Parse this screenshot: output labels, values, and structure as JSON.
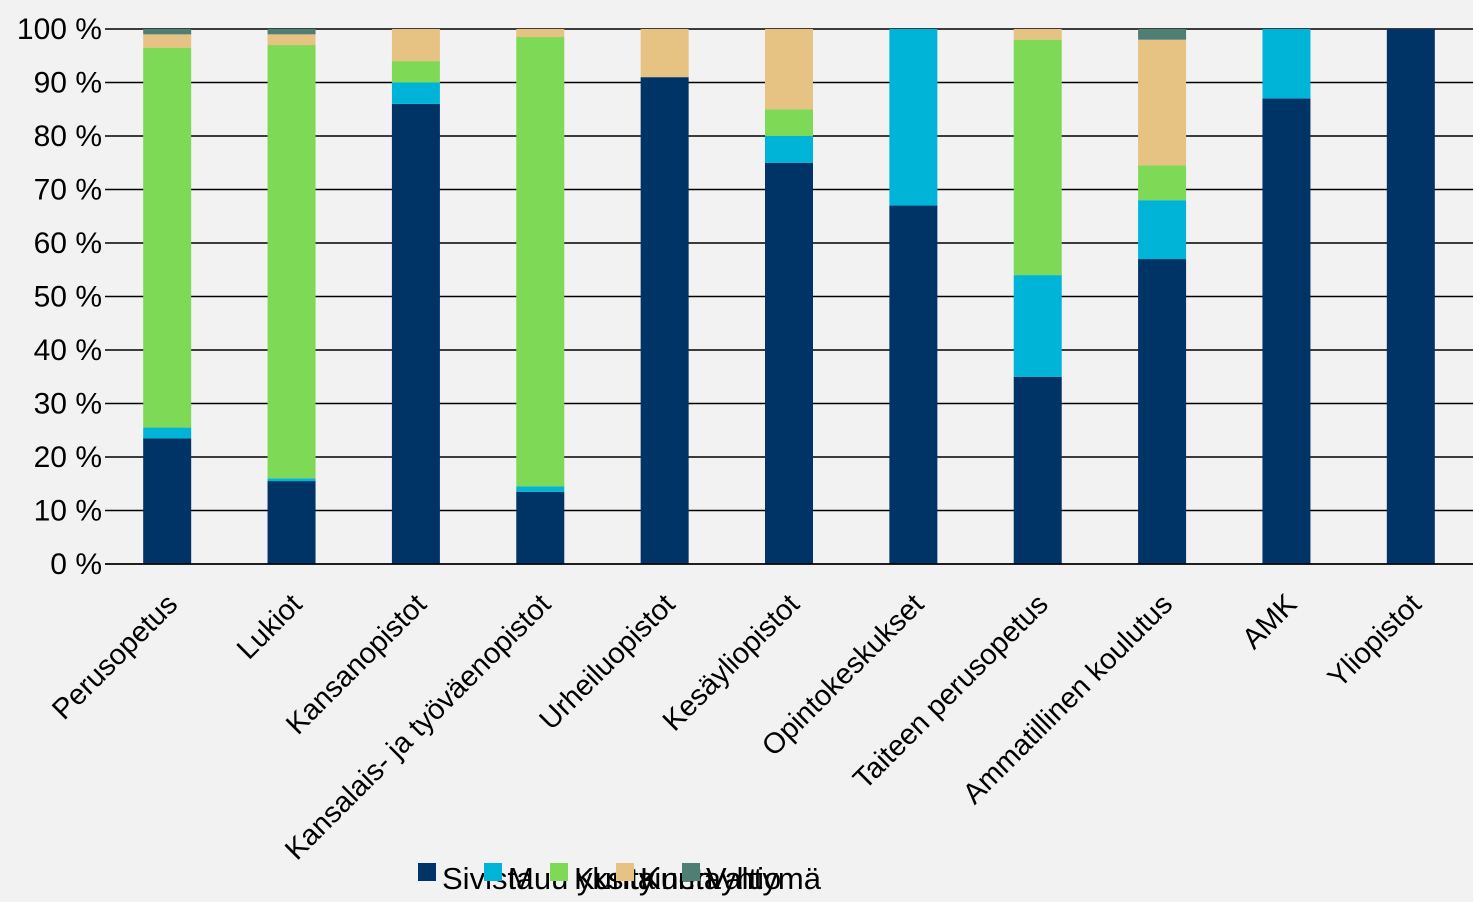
{
  "chart_data": {
    "type": "bar",
    "stacked": true,
    "percent": true,
    "categories": [
      "Perusopetus",
      "Lukiot",
      "Kansanopistot",
      "Kansalais- ja työväenopistot",
      "Urheiluopistot",
      "Kesäyliopistot",
      "Opintokeskukset",
      "Taiteen perusopetus",
      "Ammatillinen koulutus",
      "AMK",
      "Yliopistot"
    ],
    "series": [
      {
        "name": "Sivista",
        "color": "#003366",
        "values": [
          23.5,
          15.5,
          86,
          13.5,
          91,
          75,
          67,
          35,
          57,
          87,
          100
        ]
      },
      {
        "name": "Muu yksityinen",
        "color": "#00b4d8",
        "values": [
          2,
          0.5,
          4,
          1,
          0,
          5,
          33,
          19,
          11,
          13,
          0
        ]
      },
      {
        "name": "Kunta",
        "color": "#7ed957",
        "values": [
          71,
          81,
          4,
          84,
          0,
          5,
          0,
          44,
          6.5,
          0,
          0
        ]
      },
      {
        "name": "Kuntayhtymä",
        "color": "#e6c283",
        "values": [
          2.5,
          2,
          6,
          1.5,
          9,
          15,
          0,
          2,
          23.5,
          0,
          0
        ]
      },
      {
        "name": "Valtio",
        "color": "#4f7f72",
        "values": [
          1,
          1,
          0,
          0,
          0,
          0,
          0,
          0,
          2,
          0,
          0
        ]
      }
    ],
    "ylim": [
      0,
      100
    ],
    "yticks": [
      "0 %",
      "10 %",
      "20 %",
      "30 %",
      "40 %",
      "50 %",
      "60 %",
      "70 %",
      "80 %",
      "90 %",
      "100 %"
    ],
    "grid": true,
    "legend_position": "bottom"
  }
}
